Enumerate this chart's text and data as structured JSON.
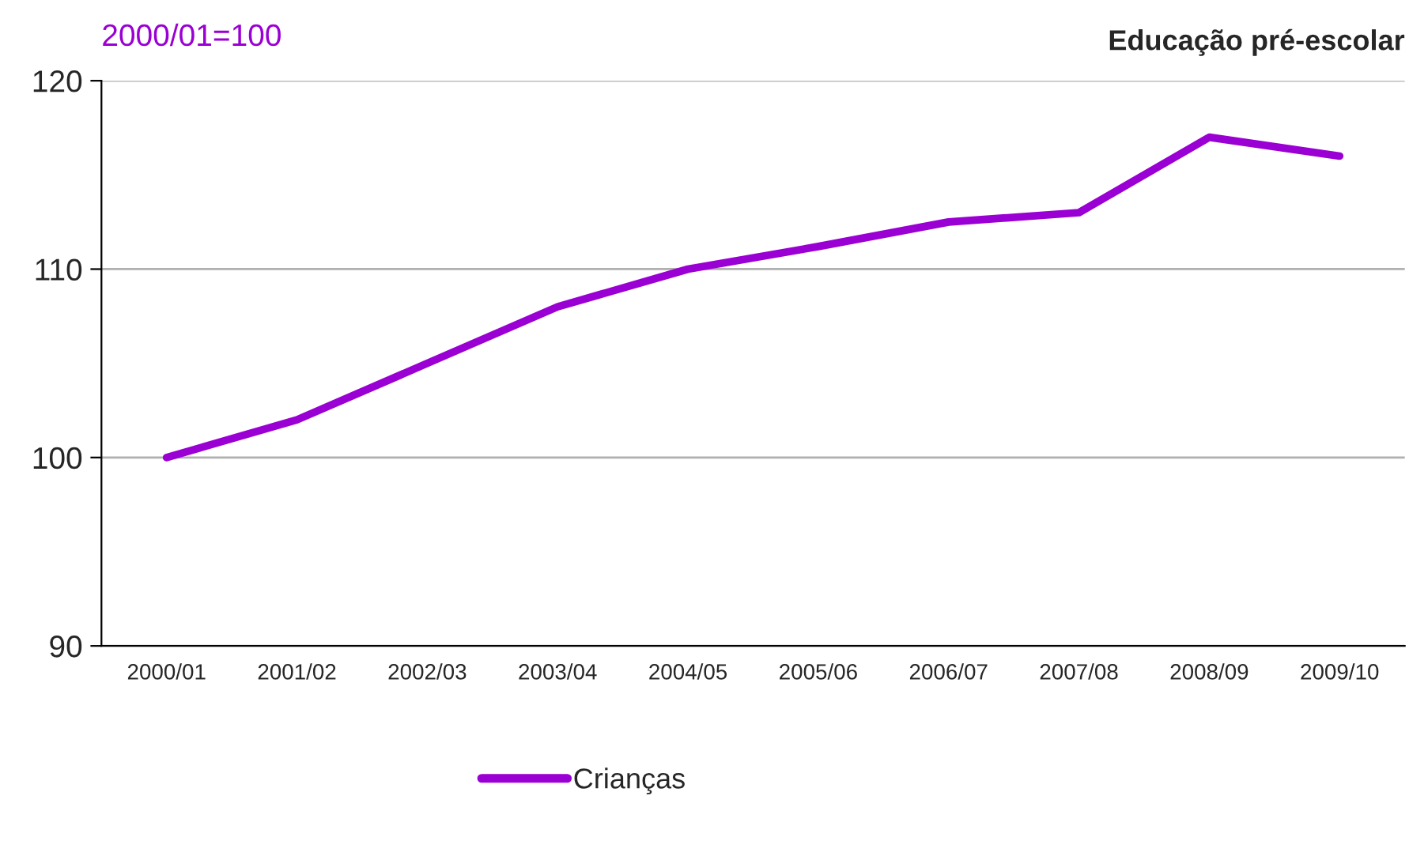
{
  "chart_data": {
    "type": "line",
    "title": "Educação pré-escolar",
    "ylabel": "2000/01=100",
    "categories": [
      "2000/01",
      "2001/02",
      "2002/03",
      "2003/04",
      "2004/05",
      "2005/06",
      "2006/07",
      "2007/08",
      "2008/09",
      "2009/10"
    ],
    "series": [
      {
        "name": "Crianças",
        "color": "#9a00d4",
        "values": [
          100,
          102,
          105,
          108,
          110,
          111.2,
          112.5,
          113,
          117,
          116
        ]
      }
    ],
    "ylim": [
      90,
      120
    ],
    "yticks": [
      90,
      100,
      110,
      120
    ],
    "grid": "y",
    "legend": "bottom",
    "marker": "none",
    "line_style": "solid"
  }
}
